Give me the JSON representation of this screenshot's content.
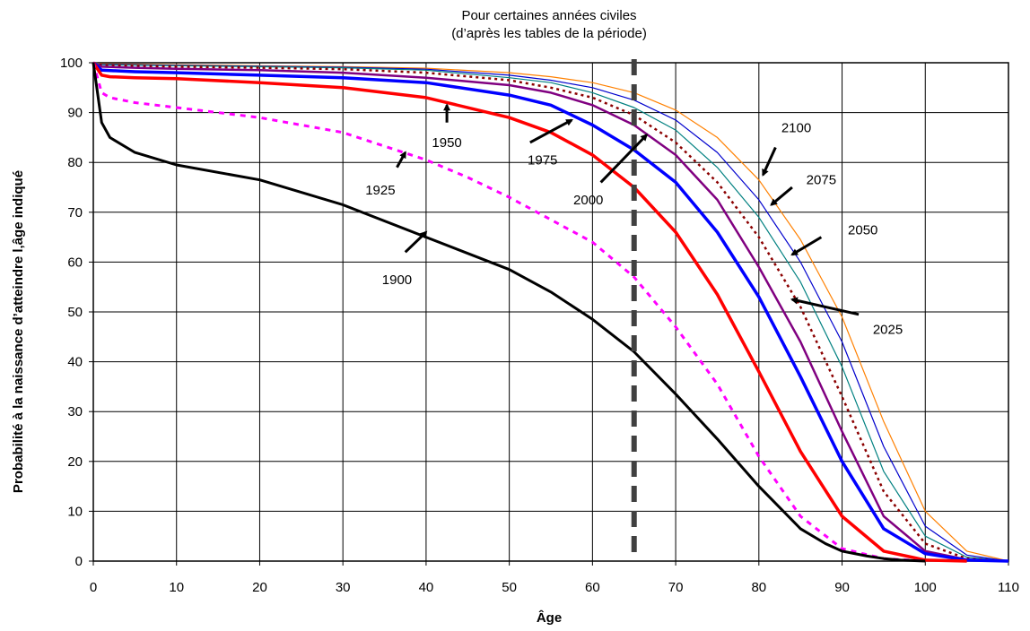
{
  "chart_data": {
    "type": "line",
    "title_lines": [
      "Pour certaines années civiles",
      "(d’après les tables de la période)"
    ],
    "xlabel": "Âge",
    "ylabel": "Probabilité à la naissance d’atteindre l‚âge indiqué",
    "xlim": [
      0,
      110
    ],
    "ylim": [
      0,
      100
    ],
    "xticks": [
      0,
      10,
      20,
      30,
      40,
      50,
      60,
      70,
      80,
      90,
      100,
      110
    ],
    "yticks": [
      0,
      10,
      20,
      30,
      40,
      50,
      60,
      70,
      80,
      90,
      100
    ],
    "grid": true,
    "reference_line": {
      "x": 65,
      "color": "#404040",
      "style": "dashed"
    },
    "series": [
      {
        "name": "1900",
        "color": "#000000",
        "width": 3,
        "dash": "",
        "x": [
          0,
          1,
          2,
          5,
          10,
          20,
          30,
          40,
          50,
          55,
          60,
          65,
          70,
          75,
          80,
          85,
          88,
          90,
          93,
          95,
          97,
          100
        ],
        "y": [
          100,
          88,
          85,
          82,
          79.5,
          76.5,
          71.5,
          65,
          58.5,
          54,
          48.5,
          42,
          33.5,
          24.5,
          15,
          6.5,
          3.5,
          2,
          1,
          0.5,
          0.2,
          0
        ]
      },
      {
        "name": "1925",
        "color": "#ff00ff",
        "width": 3,
        "dash": "6,6",
        "x": [
          0,
          1,
          2,
          5,
          10,
          20,
          30,
          40,
          45,
          50,
          55,
          60,
          65,
          70,
          75,
          80,
          85,
          90,
          95,
          100
        ],
        "y": [
          100,
          94,
          93,
          92,
          91,
          89,
          86,
          80.5,
          77,
          73,
          68.5,
          64,
          57,
          47,
          35.5,
          21,
          9,
          2.5,
          0.5,
          0
        ]
      },
      {
        "name": "1950",
        "color": "#ff0000",
        "width": 3.5,
        "dash": "",
        "x": [
          0,
          1,
          2,
          5,
          10,
          20,
          30,
          40,
          50,
          55,
          60,
          65,
          70,
          75,
          80,
          85,
          90,
          95,
          100,
          105
        ],
        "y": [
          100,
          97.5,
          97.2,
          97,
          96.8,
          96,
          95,
          93,
          89,
          86,
          81.5,
          75,
          66,
          53.5,
          38,
          22,
          9,
          2,
          0.2,
          0
        ]
      },
      {
        "name": "1975",
        "color": "#0000ff",
        "width": 3.5,
        "dash": "",
        "x": [
          0,
          1,
          5,
          10,
          20,
          30,
          40,
          50,
          55,
          60,
          65,
          70,
          75,
          80,
          85,
          90,
          95,
          100,
          105,
          110
        ],
        "y": [
          100,
          98.5,
          98.2,
          98,
          97.5,
          97,
          96,
          93.5,
          91.5,
          87.5,
          82.5,
          76,
          66,
          53,
          37,
          20,
          6.5,
          1.5,
          0.2,
          0
        ]
      },
      {
        "name": "2000",
        "color": "#800080",
        "width": 2.5,
        "dash": "",
        "x": [
          0,
          1,
          5,
          10,
          20,
          30,
          40,
          50,
          55,
          60,
          65,
          70,
          75,
          80,
          85,
          90,
          95,
          100,
          105,
          110
        ],
        "y": [
          100,
          99.2,
          99,
          98.8,
          98.5,
          98,
          97,
          95.5,
          94,
          91.5,
          87.5,
          81.5,
          72.5,
          59,
          44,
          26,
          9,
          2,
          0.3,
          0
        ]
      },
      {
        "name": "2025",
        "color": "#8b0000",
        "width": 2.5,
        "dash": "3,4",
        "x": [
          0,
          1,
          10,
          20,
          30,
          40,
          50,
          55,
          60,
          65,
          70,
          75,
          80,
          85,
          90,
          95,
          100,
          105,
          110
        ],
        "y": [
          100,
          99.5,
          99.2,
          99,
          98.7,
          98,
          96.5,
          95,
          93,
          89.5,
          84,
          76,
          65,
          51,
          33,
          14,
          3.5,
          0.5,
          0
        ]
      },
      {
        "name": "2050",
        "color": "#008080",
        "width": 1.2,
        "dash": "",
        "x": [
          0,
          1,
          10,
          20,
          30,
          40,
          50,
          55,
          60,
          65,
          70,
          75,
          80,
          85,
          90,
          95,
          100,
          105,
          110
        ],
        "y": [
          100,
          99.6,
          99.4,
          99.2,
          99,
          98.5,
          97,
          96,
          94,
          91,
          86.5,
          79,
          69,
          56,
          39,
          18,
          5,
          0.8,
          0
        ]
      },
      {
        "name": "2075",
        "color": "#0000cd",
        "width": 1.2,
        "dash": "",
        "x": [
          0,
          1,
          10,
          20,
          30,
          40,
          50,
          55,
          60,
          65,
          70,
          75,
          80,
          85,
          90,
          95,
          100,
          105,
          110
        ],
        "y": [
          100,
          99.7,
          99.5,
          99.3,
          99.1,
          98.7,
          97.5,
          96.5,
          95,
          92.5,
          88.5,
          82,
          72.5,
          60,
          44,
          23,
          7,
          1.2,
          0
        ]
      },
      {
        "name": "2100",
        "color": "#ff8000",
        "width": 1.2,
        "dash": "",
        "x": [
          0,
          1,
          10,
          20,
          30,
          40,
          50,
          55,
          60,
          65,
          70,
          75,
          80,
          85,
          90,
          95,
          100,
          105,
          110
        ],
        "y": [
          100,
          99.8,
          99.6,
          99.4,
          99.2,
          98.9,
          98,
          97.2,
          96,
          94,
          90.5,
          85,
          76.5,
          64.5,
          49,
          28,
          10,
          2,
          0
        ]
      }
    ],
    "annotations": [
      {
        "text": "1900",
        "label_x": 36.5,
        "label_y": 56.5,
        "from_x": 37.5,
        "from_y": 62,
        "to_x": 40,
        "to_y": 66
      },
      {
        "text": "1925",
        "label_x": 34.5,
        "label_y": 74.5,
        "from_x": 36.5,
        "from_y": 79,
        "to_x": 37.5,
        "to_y": 82
      },
      {
        "text": "1950",
        "label_x": 42.5,
        "label_y": 84,
        "from_x": 42.5,
        "from_y": 88,
        "to_x": 42.5,
        "to_y": 91.5
      },
      {
        "text": "1975",
        "label_x": 54,
        "label_y": 80.5,
        "from_x": 52.5,
        "from_y": 84,
        "to_x": 57.5,
        "to_y": 88.5
      },
      {
        "text": "2000",
        "label_x": 59.5,
        "label_y": 72.5,
        "from_x": 61,
        "from_y": 76,
        "to_x": 66.5,
        "to_y": 85.5
      },
      {
        "text": "2025",
        "label_x": 95.5,
        "label_y": 46.5,
        "from_x": 92,
        "from_y": 49.5,
        "to_x": 84,
        "to_y": 52.5
      },
      {
        "text": "2050",
        "label_x": 92.5,
        "label_y": 66.5,
        "from_x": 87.5,
        "from_y": 65,
        "to_x": 84,
        "to_y": 61.5
      },
      {
        "text": "2075",
        "label_x": 87.5,
        "label_y": 76.5,
        "from_x": 84,
        "from_y": 75,
        "to_x": 81.5,
        "to_y": 71.5
      },
      {
        "text": "2100",
        "label_x": 84.5,
        "label_y": 87,
        "from_x": 82,
        "from_y": 83,
        "to_x": 80.5,
        "to_y": 77.5
      }
    ]
  }
}
